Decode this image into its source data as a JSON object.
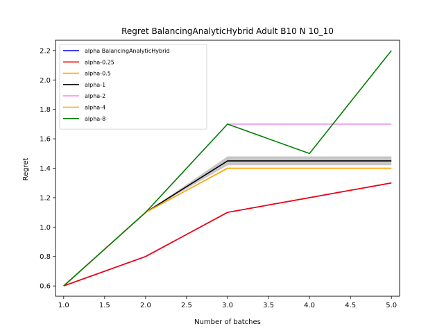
{
  "chart_data": {
    "type": "line",
    "title": "Regret BalancingAnalyticHybrid Adult B10 N 10_10",
    "xlabel": "Number of batches",
    "ylabel": "Regret",
    "xlim": [
      0.9,
      5.1
    ],
    "ylim": [
      0.53,
      2.27
    ],
    "xticks": [
      1.0,
      1.5,
      2.0,
      2.5,
      3.0,
      3.5,
      4.0,
      4.5,
      5.0
    ],
    "xtick_labels": [
      "1.0",
      "1.5",
      "2.0",
      "2.5",
      "3.0",
      "3.5",
      "4.0",
      "4.5",
      "5.0"
    ],
    "yticks": [
      0.6,
      0.8,
      1.0,
      1.2,
      1.4,
      1.6,
      1.8,
      2.0,
      2.2
    ],
    "ytick_labels": [
      "0.6",
      "0.8",
      "1.0",
      "1.2",
      "1.4",
      "1.6",
      "1.8",
      "2.0",
      "2.2"
    ],
    "grid": false,
    "legend_position": "top-left",
    "x": [
      1,
      2,
      3,
      4,
      5
    ],
    "series": [
      {
        "name": "alpha BalancingAnalyticHybrid",
        "color": "#0000ff",
        "values": [
          0.6,
          0.8,
          1.1,
          1.2,
          1.3
        ]
      },
      {
        "name": "alpha-0.25",
        "color": "#ff0000",
        "values": [
          0.6,
          0.8,
          1.1,
          1.2,
          1.3
        ]
      },
      {
        "name": "alpha-0.5",
        "color": "#ffa500",
        "values": [
          0.6,
          1.1,
          1.4,
          1.4,
          1.4
        ]
      },
      {
        "name": "alpha-1",
        "color": "#000000",
        "values": [
          0.6,
          1.1,
          1.45,
          1.45,
          1.45
        ],
        "band_lower": [
          0.6,
          1.1,
          1.42,
          1.42,
          1.42
        ],
        "band_upper": [
          0.6,
          1.1,
          1.48,
          1.48,
          1.48
        ]
      },
      {
        "name": "alpha-2",
        "color": "#ee82ee",
        "values": [
          0.6,
          1.1,
          1.7,
          1.7,
          1.7
        ]
      },
      {
        "name": "alpha-4",
        "color": "#ffa500",
        "values": [
          0.6,
          1.1,
          1.4,
          1.4,
          1.4
        ]
      },
      {
        "name": "alpha-8",
        "color": "#008000",
        "values": [
          0.6,
          1.1,
          1.7,
          1.5,
          2.2
        ]
      }
    ]
  }
}
